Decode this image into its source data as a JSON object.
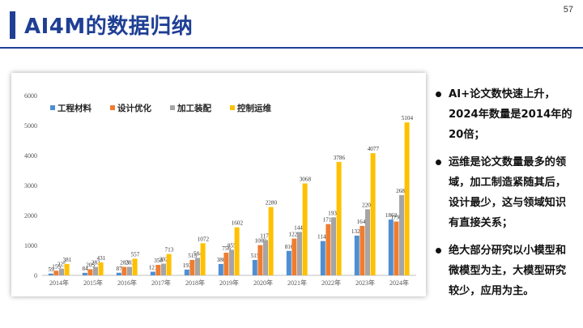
{
  "slide": {
    "title": "AI4M的数据归纳",
    "page_number": "57"
  },
  "notes": [
    "AI+论文数快速上升，2024年数量是2014年的20倍；",
    "运维是论文数量最多的领域，加工制造紧随其后，设计最少，这与领域知识有直接关系；",
    "绝大部分研究以小模型和微模型为主，大模型研究较少，应用为主。"
  ],
  "colors": {
    "title": "#1f3f95",
    "series": [
      "#4e8fd3",
      "#ee7d31",
      "#a5a5a5",
      "#ffc000"
    ]
  },
  "chart_data": {
    "type": "bar",
    "title": "",
    "xlabel": "",
    "ylabel": "",
    "ylim": [
      0,
      6000
    ],
    "yticks": [
      0,
      1000,
      2000,
      3000,
      4000,
      5000,
      6000
    ],
    "categories": [
      "2014年",
      "2015年",
      "2016年",
      "2017年",
      "2018年",
      "2019年",
      "2020年",
      "2021年",
      "2022年",
      "2023年",
      "2024年"
    ],
    "legend_position": "top-left",
    "grid": false,
    "series": [
      {
        "name": "工程材料",
        "values": [
          59,
          84,
          87,
          121,
          193,
          380,
          515,
          816,
          1145,
          1327,
          1862
        ]
      },
      {
        "name": "设计优化",
        "values": [
          155,
          205,
          283,
          350,
          515,
          756,
          1009,
          1229,
          1711,
          1649,
          1796
        ]
      },
      {
        "name": "加工装配",
        "values": [
          225,
          283,
          283,
          392,
          584,
          855,
          1172,
          1448,
          1937,
          2206,
          2680
        ]
      },
      {
        "name": "控制运维",
        "values": [
          381,
          431,
          557,
          713,
          1072,
          1602,
          2280,
          3068,
          3786,
          4077,
          5104
        ]
      }
    ]
  }
}
